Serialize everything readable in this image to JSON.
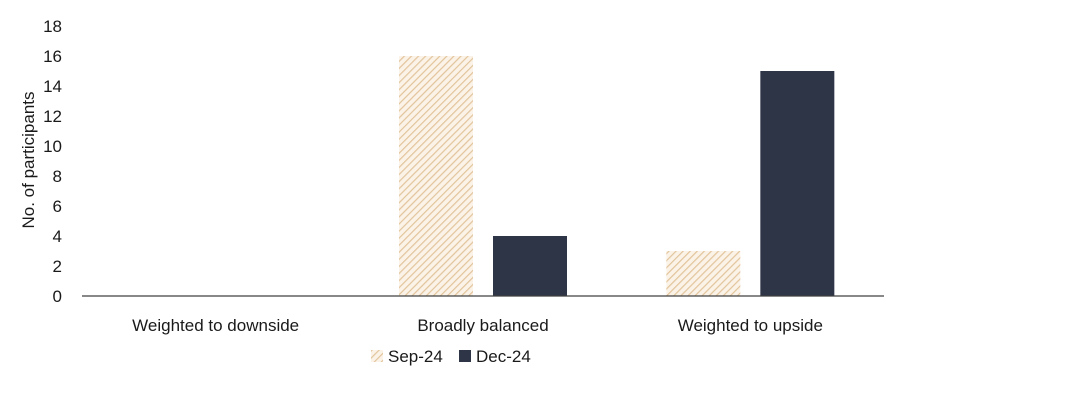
{
  "chart_data": {
    "type": "bar",
    "categories": [
      "Weighted to downside",
      "Broadly balanced",
      "Weighted to upside"
    ],
    "series": [
      {
        "name": "Sep-24",
        "values": [
          0,
          16,
          3
        ],
        "color": "#e8c8a0",
        "pattern": "diagonal-hatch"
      },
      {
        "name": "Dec-24",
        "values": [
          0,
          4,
          15
        ],
        "color": "#2d3547"
      }
    ],
    "ylabel": "No. of participants",
    "ylim": [
      0,
      18
    ],
    "yticks": [
      "0",
      "2",
      "4",
      "6",
      "8",
      "10",
      "12",
      "14",
      "16",
      "18"
    ],
    "grid": false,
    "legend": "bottom-center"
  }
}
